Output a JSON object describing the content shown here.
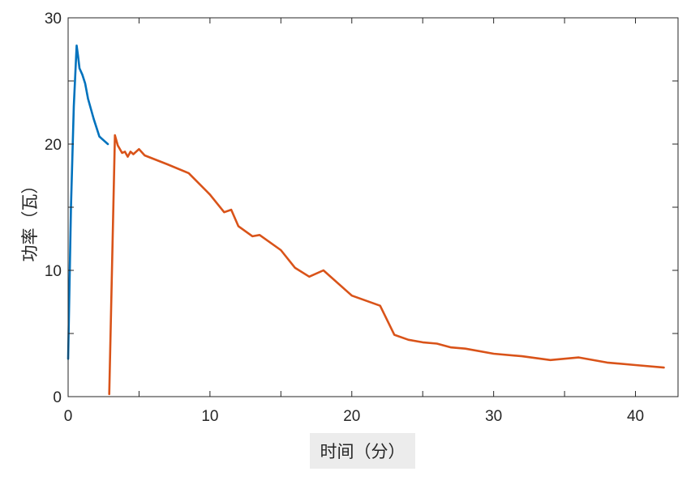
{
  "chart_data": {
    "type": "line",
    "xlabel": "时间（分）",
    "ylabel": "功率（瓦）",
    "xlim": [
      0,
      43
    ],
    "ylim": [
      0,
      30
    ],
    "xticks": [
      0,
      10,
      20,
      30,
      40
    ],
    "yticks": [
      0,
      10,
      20,
      30
    ],
    "grid": false,
    "legend": "none",
    "series": [
      {
        "color": "#0072BD",
        "x": [
          0.0,
          0.2,
          0.4,
          0.6,
          0.7,
          0.8,
          1.0,
          1.2,
          1.4,
          1.6,
          1.8,
          2.0,
          2.2,
          2.5,
          2.8
        ],
        "y": [
          3.0,
          15.0,
          23.0,
          27.8,
          27.0,
          26.0,
          25.5,
          24.8,
          23.6,
          22.8,
          22.0,
          21.3,
          20.6,
          20.3,
          20.0
        ]
      },
      {
        "color": "#D95319",
        "x": [
          2.9,
          3.3,
          3.5,
          3.8,
          4.0,
          4.2,
          4.4,
          4.6,
          5.0,
          5.4,
          7.0,
          8.5,
          10.0,
          11.0,
          11.5,
          12.0,
          13.0,
          13.5,
          15.0,
          16.0,
          17.0,
          18.0,
          20.0,
          22.0,
          23.0,
          24.0,
          25.0,
          26.0,
          27.0,
          28.0,
          30.0,
          32.0,
          34.0,
          36.0,
          38.0,
          40.0,
          42.0
        ],
        "y": [
          0.2,
          20.7,
          19.9,
          19.3,
          19.4,
          19.0,
          19.4,
          19.2,
          19.6,
          19.1,
          18.4,
          17.7,
          16.0,
          14.6,
          14.8,
          13.5,
          12.7,
          12.8,
          11.6,
          10.2,
          9.5,
          10.0,
          8.0,
          7.2,
          4.9,
          4.5,
          4.3,
          4.2,
          3.9,
          3.8,
          3.4,
          3.2,
          2.9,
          3.1,
          2.7,
          2.5,
          2.3
        ]
      }
    ]
  }
}
